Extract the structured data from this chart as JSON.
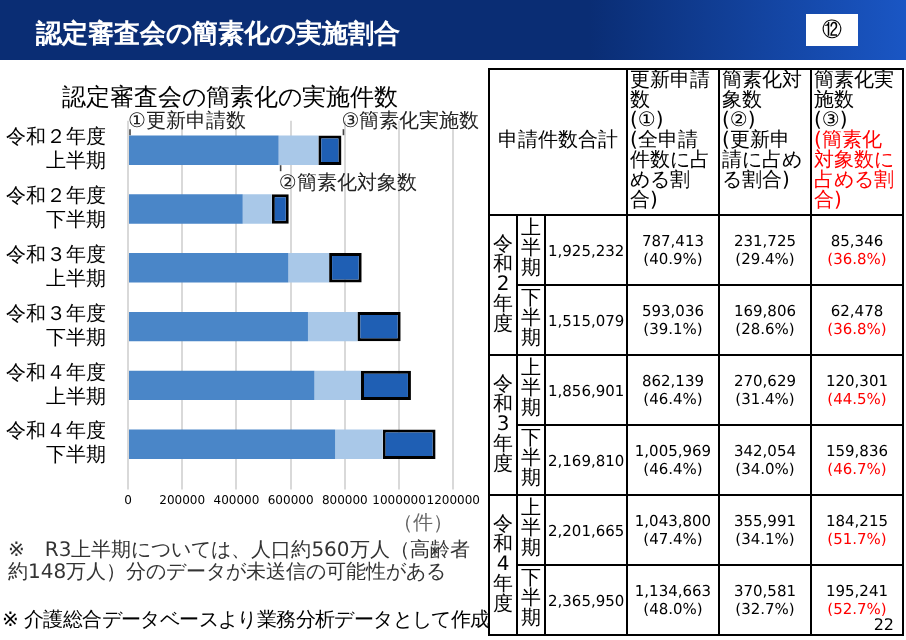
{
  "chart_data": [
    {
      "type": "bar",
      "orientation": "horizontal",
      "stacked": true,
      "title": "認定審査会の簡素化の実施件数",
      "xlabel": "（件）",
      "categories": [
        "令和２年度上半期",
        "令和２年度下半期",
        "令和３年度上半期",
        "令和３年度下半期",
        "令和４年度上半期",
        "令和４年度下半期"
      ],
      "series": [
        {
          "color": "#4a86c8",
          "values": [
            555688,
            423230,
            591510,
            663915,
            687809,
            764082
          ]
        },
        {
          "color": "#a9c8e8",
          "values": [
            146379,
            107328,
            150328,
            182218,
            171776,
            175340
          ]
        },
        {
          "color": "#1f5fb4",
          "values": [
            85346,
            62478,
            120301,
            159836,
            184215,
            195241
          ]
        }
      ],
      "xlim": [
        0,
        1200000
      ],
      "xticks": [
        0,
        200000,
        400000,
        600000,
        800000,
        1000000,
        1200000
      ],
      "grid": "x",
      "legend": false,
      "annotations": [
        {
          "text": "①更新申請数",
          "x": 0,
          "y": "令和２年度上半期"
        },
        {
          "text": "②簡素化対象数",
          "x": 555688,
          "y": "令和２年度上半期"
        },
        {
          "text": "③簡素化実施数",
          "x": 787413,
          "y": "令和２年度上半期"
        },
        "※　R3上半期については、人口約560万人（高齢者約148万人）分のデータが未送信の可能性がある"
      ]
    },
    {
      "type": "other",
      "title": "認定審査会の簡素化の実施割合",
      "color": "#ff0000",
      "categories": [
        "申請件数合計",
        "更新申請数\n(①)\n(全申請件数に占める割合)",
        "簡素化対象数\n(②)\n(更新申請に占める割合)",
        "簡素化実施数\n(③)\n(簡素化対象数に占める割合)"
      ],
      "y_categories": [
        "令和2年度",
        null,
        "令和3年度",
        null,
        "令和4年度",
        null
      ],
      "y2_categories": [
        "上半期",
        "下半期",
        "上半期",
        "下半期",
        "上半期",
        "下半期"
      ],
      "cell_labels": [
        [
          "1,925,232",
          "787,413\n(40.9%)",
          "231,725\n(29.4%)",
          "85,346\n(36.8%)"
        ],
        [
          "1,515,079",
          "593,036\n(39.1%)",
          "169,806\n(28.6%)",
          "62,478\n(36.8%)"
        ],
        [
          "1,856,901",
          "862,139\n(46.4%)",
          "270,629\n(31.4%)",
          "120,301\n(44.5%)"
        ],
        [
          "2,169,810",
          "1,005,969\n(46.4%)",
          "342,054\n(34.0%)",
          "159,836\n(46.7%)"
        ],
        [
          "2,201,665",
          "1,043,800\n(47.4%)",
          "355,991\n(34.1%)",
          "184,215\n(51.7%)"
        ],
        [
          "2,365,950",
          "1,134,663\n(48.0%)",
          "370,581\n(32.7%)",
          "195,241\n(52.7%)"
        ]
      ],
      "annotations": [
        "⑫",
        "※ 介護総合データベースより業務分析データとして作成",
        "22"
      ]
    }
  ]
}
